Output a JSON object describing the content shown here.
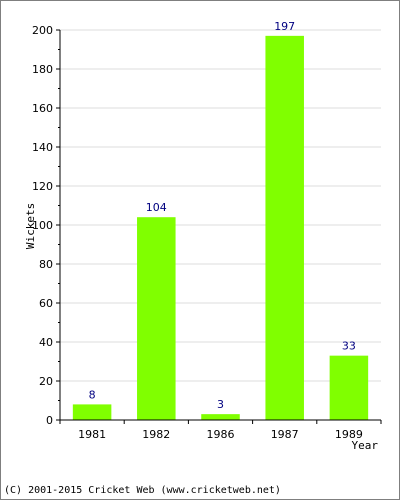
{
  "chart_data": {
    "type": "bar",
    "categories": [
      "1981",
      "1982",
      "1986",
      "1987",
      "1989"
    ],
    "values": [
      8,
      104,
      3,
      197,
      33
    ],
    "xlabel": "Year",
    "ylabel": "Wickets",
    "ylim": [
      0,
      200
    ],
    "yticks": [
      0,
      20,
      40,
      60,
      80,
      100,
      120,
      140,
      160,
      180,
      200
    ],
    "grid": true,
    "bar_color": "#80ff00",
    "value_label_color": "#000080"
  },
  "footer": {
    "copyright": "(C) 2001-2015 Cricket Web (www.cricketweb.net)"
  }
}
